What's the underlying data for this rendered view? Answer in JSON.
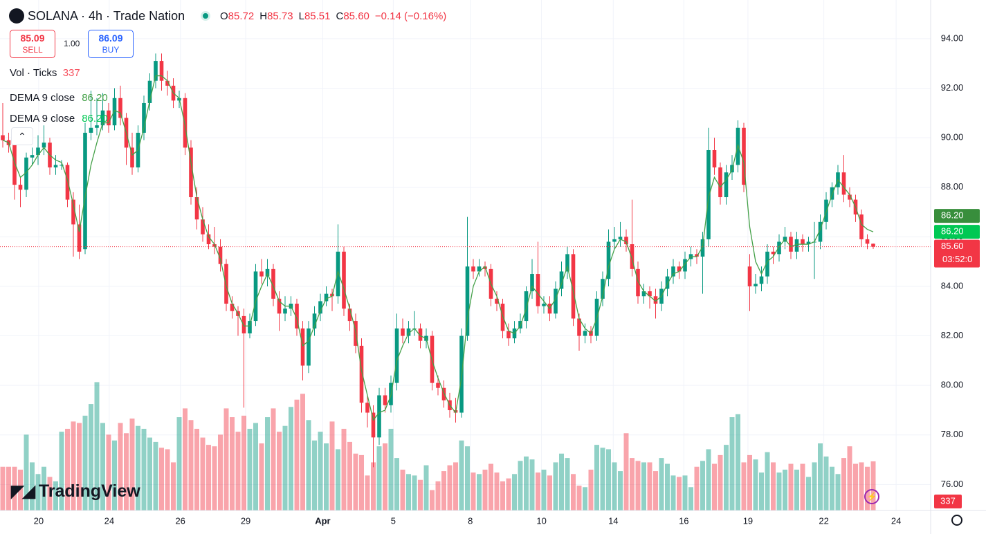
{
  "header": {
    "symbol": "SOLANA · 4h · Trade Nation",
    "ohlc": [
      {
        "key": "O",
        "value": "85.72"
      },
      {
        "key": "H",
        "value": "85.73"
      },
      {
        "key": "L",
        "value": "85.51"
      },
      {
        "key": "C",
        "value": "85.60"
      }
    ],
    "change": "−0.14 (−0.16%)",
    "sell": {
      "price": "85.09",
      "label": "SELL"
    },
    "quantity": "1.00",
    "buy": {
      "price": "86.09",
      "label": "BUY"
    },
    "volume_legend": {
      "name": "Vol · Ticks",
      "value": "337"
    },
    "indicators": [
      {
        "name": "DEMA 9 close",
        "value": "86.20",
        "color": "#43a047"
      },
      {
        "name": "DEMA 9 close",
        "value": "86.20",
        "color": "#00c853"
      }
    ],
    "logo": "TradingView"
  },
  "chart_data": {
    "type": "candlestick",
    "up_color": "#089981",
    "down_color": "#f23645",
    "ylim": [
      74.95,
      95.56
    ],
    "yticks": [
      {
        "value": 76,
        "label": "76.00"
      },
      {
        "value": 78,
        "label": "78.00"
      },
      {
        "value": 80,
        "label": "80.00"
      },
      {
        "value": 82,
        "label": "82.00"
      },
      {
        "value": 84,
        "label": "84.00"
      },
      {
        "value": 86,
        "label": "86.00"
      },
      {
        "value": 88,
        "label": "88.00"
      },
      {
        "value": 90,
        "label": "90.00"
      },
      {
        "value": 92,
        "label": "92.00"
      },
      {
        "value": 94,
        "label": "94.00"
      }
    ],
    "xticks": [
      {
        "value": 6.1,
        "label": "20"
      },
      {
        "value": 18.1,
        "label": "24"
      },
      {
        "value": 30.2,
        "label": "26"
      },
      {
        "value": 41.3,
        "label": "29"
      },
      {
        "value": 54.4,
        "label": "Apr"
      },
      {
        "value": 66.4,
        "label": "5"
      },
      {
        "value": 79.5,
        "label": "8"
      },
      {
        "value": 91.6,
        "label": "10"
      },
      {
        "value": 103.8,
        "label": "14"
      },
      {
        "value": 115.8,
        "label": "16"
      },
      {
        "value": 126.7,
        "label": "19"
      },
      {
        "value": 139.6,
        "label": "22"
      },
      {
        "value": 151.9,
        "label": "24"
      }
    ],
    "grid": true,
    "candles": [
      [
        90.1,
        91.4,
        89.6,
        89.9
      ],
      [
        89.9,
        90.2,
        89.4,
        89.7
      ],
      [
        89.7,
        89.9,
        87.5,
        88.1
      ],
      [
        88.1,
        88.4,
        87.2,
        87.9
      ],
      [
        87.9,
        89.4,
        87.6,
        89.2
      ],
      [
        89.2,
        89.6,
        88.9,
        89.3
      ],
      [
        89.3,
        90.1,
        88.9,
        89.6
      ],
      [
        89.6,
        90.5,
        89.3,
        89.8
      ],
      [
        89.8,
        90.0,
        88.5,
        88.8
      ],
      [
        88.8,
        89.3,
        88.5,
        88.9
      ],
      [
        88.9,
        89.1,
        88.7,
        88.9
      ],
      [
        88.9,
        89.0,
        87.2,
        87.5
      ],
      [
        87.5,
        87.8,
        85.2,
        86.5
      ],
      [
        86.5,
        87.3,
        85.1,
        85.4
      ],
      [
        85.5,
        90.6,
        85.3,
        90.2
      ],
      [
        90.2,
        91.9,
        89.9,
        90.4
      ],
      [
        90.4,
        91.6,
        90.1,
        90.5
      ],
      [
        90.5,
        91.8,
        90.3,
        91.1
      ],
      [
        91.1,
        91.4,
        90.2,
        90.5
      ],
      [
        90.5,
        92.0,
        90.3,
        91.6
      ],
      [
        91.6,
        92.1,
        90.5,
        90.8
      ],
      [
        90.8,
        91.0,
        88.9,
        89.6
      ],
      [
        89.6,
        90.2,
        88.5,
        88.8
      ],
      [
        88.8,
        90.5,
        88.6,
        90.2
      ],
      [
        90.2,
        91.7,
        89.9,
        91.4
      ],
      [
        91.4,
        92.6,
        91.1,
        92.3
      ],
      [
        92.3,
        93.4,
        92.0,
        93.1
      ],
      [
        93.1,
        93.4,
        91.9,
        92.3
      ],
      [
        92.3,
        92.7,
        91.7,
        92.1
      ],
      [
        92.1,
        92.4,
        91.2,
        91.5
      ],
      [
        91.5,
        91.9,
        91.2,
        91.6
      ],
      [
        91.6,
        91.8,
        89.3,
        89.6
      ],
      [
        89.6,
        89.9,
        87.3,
        87.6
      ],
      [
        87.6,
        88.0,
        86.3,
        86.7
      ],
      [
        86.7,
        87.2,
        85.8,
        86.1
      ],
      [
        86.1,
        86.5,
        85.5,
        85.7
      ],
      [
        85.7,
        86.4,
        85.3,
        85.6
      ],
      [
        85.6,
        85.9,
        84.6,
        84.9
      ],
      [
        84.9,
        85.1,
        83.0,
        83.3
      ],
      [
        83.3,
        83.6,
        82.7,
        83.0
      ],
      [
        83.0,
        83.2,
        82.0,
        82.8
      ],
      [
        82.8,
        83.1,
        79.1,
        82.1
      ],
      [
        82.1,
        82.9,
        81.9,
        82.6
      ],
      [
        82.6,
        84.9,
        82.4,
        84.6
      ],
      [
        84.6,
        85.1,
        84.1,
        84.4
      ],
      [
        84.4,
        85.1,
        84.0,
        84.7
      ],
      [
        84.7,
        84.9,
        83.2,
        83.5
      ],
      [
        83.5,
        83.8,
        82.2,
        82.9
      ],
      [
        82.9,
        83.6,
        82.6,
        83.1
      ],
      [
        83.1,
        83.6,
        82.8,
        83.3
      ],
      [
        83.3,
        83.5,
        82.0,
        82.3
      ],
      [
        82.3,
        82.6,
        80.2,
        80.8
      ],
      [
        80.8,
        82.6,
        80.5,
        82.3
      ],
      [
        82.3,
        83.2,
        82.0,
        82.9
      ],
      [
        82.9,
        83.7,
        82.6,
        83.4
      ],
      [
        83.4,
        84.0,
        83.2,
        83.7
      ],
      [
        83.7,
        83.9,
        83.0,
        83.6
      ],
      [
        83.6,
        86.5,
        83.3,
        85.4
      ],
      [
        85.4,
        85.6,
        82.8,
        83.1
      ],
      [
        83.1,
        83.3,
        82.2,
        82.6
      ],
      [
        82.6,
        82.9,
        81.3,
        81.6
      ],
      [
        81.6,
        81.9,
        78.9,
        79.3
      ],
      [
        79.3,
        79.6,
        78.3,
        78.9
      ],
      [
        78.9,
        79.2,
        76.7,
        77.9
      ],
      [
        77.9,
        79.9,
        77.6,
        79.6
      ],
      [
        79.6,
        79.9,
        78.9,
        79.2
      ],
      [
        79.2,
        80.4,
        78.9,
        80.1
      ],
      [
        80.1,
        82.9,
        79.8,
        82.3
      ],
      [
        82.3,
        82.7,
        81.7,
        82.0
      ],
      [
        82.0,
        82.6,
        81.7,
        82.3
      ],
      [
        82.3,
        83.0,
        82.0,
        82.3
      ],
      [
        82.3,
        82.5,
        81.5,
        81.8
      ],
      [
        81.8,
        82.3,
        81.5,
        82.0
      ],
      [
        82.0,
        82.2,
        79.8,
        80.1
      ],
      [
        80.1,
        80.4,
        79.6,
        79.9
      ],
      [
        79.9,
        80.2,
        79.1,
        79.4
      ],
      [
        79.4,
        79.7,
        78.7,
        79.0
      ],
      [
        79.0,
        79.5,
        78.5,
        78.9
      ],
      [
        78.9,
        82.3,
        78.7,
        82.0
      ],
      [
        82.0,
        86.8,
        81.8,
        84.8
      ],
      [
        84.8,
        85.1,
        84.3,
        84.6
      ],
      [
        84.6,
        85.1,
        84.4,
        84.8
      ],
      [
        84.8,
        85.0,
        84.4,
        84.7
      ],
      [
        84.7,
        84.9,
        83.2,
        83.5
      ],
      [
        83.5,
        83.8,
        83.0,
        83.3
      ],
      [
        83.3,
        83.5,
        81.9,
        82.2
      ],
      [
        82.2,
        82.5,
        81.6,
        81.9
      ],
      [
        81.9,
        82.6,
        81.7,
        82.3
      ],
      [
        82.3,
        82.9,
        82.1,
        82.6
      ],
      [
        82.6,
        84.0,
        82.3,
        83.8
      ],
      [
        83.8,
        85.1,
        83.5,
        84.5
      ],
      [
        84.5,
        85.8,
        82.9,
        83.2
      ],
      [
        83.2,
        83.6,
        82.9,
        83.3
      ],
      [
        83.3,
        83.6,
        82.6,
        82.9
      ],
      [
        82.9,
        84.2,
        82.7,
        83.9
      ],
      [
        83.9,
        85.0,
        83.6,
        84.6
      ],
      [
        84.6,
        85.6,
        84.3,
        85.3
      ],
      [
        85.3,
        85.5,
        82.4,
        82.7
      ],
      [
        82.7,
        82.9,
        81.4,
        82.0
      ],
      [
        82.0,
        82.5,
        81.7,
        82.2
      ],
      [
        82.2,
        82.4,
        81.7,
        82.0
      ],
      [
        82.0,
        83.8,
        81.8,
        83.5
      ],
      [
        83.5,
        84.6,
        83.2,
        84.3
      ],
      [
        84.3,
        86.3,
        84.0,
        85.8
      ],
      [
        85.8,
        86.4,
        85.5,
        85.9
      ],
      [
        85.9,
        86.6,
        85.6,
        86.0
      ],
      [
        86.0,
        86.3,
        85.4,
        85.7
      ],
      [
        85.7,
        87.5,
        84.4,
        84.7
      ],
      [
        84.7,
        85.0,
        83.3,
        83.6
      ],
      [
        83.6,
        84.1,
        83.3,
        83.8
      ],
      [
        83.8,
        84.0,
        83.1,
        83.6
      ],
      [
        83.6,
        83.9,
        82.7,
        83.3
      ],
      [
        83.3,
        84.2,
        83.0,
        83.9
      ],
      [
        83.9,
        84.7,
        83.6,
        84.4
      ],
      [
        84.4,
        85.1,
        84.1,
        84.8
      ],
      [
        84.8,
        85.0,
        84.3,
        84.6
      ],
      [
        84.6,
        85.4,
        84.3,
        85.1
      ],
      [
        85.1,
        85.6,
        84.8,
        85.3
      ],
      [
        85.3,
        85.5,
        84.9,
        85.2
      ],
      [
        85.2,
        86.2,
        83.7,
        85.9
      ],
      [
        85.9,
        90.4,
        85.6,
        89.5
      ],
      [
        89.5,
        90.0,
        88.5,
        88.8
      ],
      [
        88.8,
        89.0,
        87.3,
        87.6
      ],
      [
        87.6,
        88.9,
        87.3,
        88.6
      ],
      [
        88.6,
        89.3,
        88.3,
        88.9
      ],
      [
        88.9,
        90.7,
        88.6,
        90.4
      ],
      [
        90.4,
        90.6,
        87.8,
        88.1
      ],
      [
        84.8,
        85.3,
        83.0,
        84.0
      ],
      [
        84.0,
        84.5,
        83.7,
        84.1
      ],
      [
        84.1,
        84.8,
        83.8,
        84.4
      ],
      [
        84.4,
        85.7,
        84.1,
        85.4
      ],
      [
        85.4,
        85.6,
        84.9,
        85.3
      ],
      [
        85.3,
        86.1,
        85.0,
        85.8
      ],
      [
        85.8,
        86.4,
        85.5,
        86.0
      ],
      [
        86.0,
        86.2,
        85.1,
        85.4
      ],
      [
        85.4,
        86.2,
        85.1,
        85.9
      ],
      [
        85.9,
        86.1,
        85.4,
        85.7
      ],
      [
        85.7,
        86.0,
        85.4,
        85.8
      ],
      [
        85.8,
        86.6,
        84.3,
        85.8
      ],
      [
        85.8,
        86.9,
        85.5,
        86.6
      ],
      [
        86.6,
        87.8,
        86.3,
        87.5
      ],
      [
        87.5,
        88.2,
        87.2,
        88.0
      ],
      [
        88.0,
        88.9,
        87.7,
        88.6
      ],
      [
        88.6,
        89.3,
        87.4,
        87.7
      ],
      [
        87.7,
        88.0,
        87.2,
        87.5
      ],
      [
        87.5,
        87.7,
        86.6,
        86.9
      ],
      [
        86.9,
        87.1,
        85.6,
        85.9
      ],
      [
        85.9,
        86.1,
        85.5,
        85.72
      ],
      [
        85.72,
        85.73,
        85.51,
        85.6
      ]
    ],
    "volumes": [
      300,
      300,
      300,
      280,
      520,
      330,
      250,
      300,
      230,
      200,
      540,
      560,
      610,
      600,
      650,
      730,
      880,
      600,
      520,
      480,
      600,
      530,
      630,
      580,
      560,
      500,
      470,
      430,
      420,
      330,
      640,
      700,
      620,
      560,
      500,
      450,
      440,
      520,
      700,
      640,
      540,
      650,
      560,
      600,
      460,
      640,
      700,
      540,
      580,
      710,
      760,
      800,
      620,
      480,
      540,
      460,
      610,
      420,
      560,
      470,
      390,
      380,
      240,
      330,
      440,
      460,
      560,
      360,
      280,
      250,
      240,
      210,
      310,
      140,
      200,
      270,
      310,
      330,
      480,
      440,
      260,
      250,
      280,
      320,
      260,
      200,
      220,
      250,
      340,
      370,
      350,
      260,
      280,
      240,
      330,
      390,
      360,
      250,
      170,
      160,
      280,
      450,
      430,
      420,
      330,
      270,
      530,
      360,
      340,
      330,
      330,
      270,
      360,
      320,
      240,
      230,
      240,
      160,
      300,
      340,
      420,
      320,
      380,
      450,
      640,
      660,
      330,
      380,
      350,
      260,
      400,
      330,
      260,
      280,
      320,
      280,
      320,
      230,
      330,
      460,
      370,
      300,
      250,
      360,
      440,
      320,
      330,
      300,
      337
    ],
    "vlim": [
      0,
      3500
    ],
    "series": [
      {
        "name": "DEMA 9 close",
        "color": "#43a047",
        "values": [
          89.9,
          89.8,
          89.0,
          88.4,
          88.6,
          88.9,
          89.3,
          89.6,
          89.3,
          89.1,
          89.0,
          88.3,
          87.3,
          86.2,
          87.6,
          88.9,
          89.8,
          90.6,
          90.6,
          91.1,
          91.0,
          90.2,
          89.3,
          89.5,
          90.4,
          91.5,
          92.5,
          92.5,
          92.3,
          91.8,
          91.6,
          90.5,
          89.0,
          87.6,
          86.7,
          86.0,
          85.7,
          85.1,
          84.0,
          83.3,
          82.9,
          82.4,
          82.4,
          83.4,
          84.0,
          84.5,
          84.0,
          83.4,
          83.2,
          83.2,
          82.7,
          81.6,
          81.8,
          82.4,
          83.0,
          83.5,
          83.6,
          84.6,
          83.9,
          83.1,
          82.2,
          80.6,
          79.6,
          78.6,
          78.9,
          79.0,
          79.6,
          81.0,
          81.6,
          82.1,
          82.3,
          82.0,
          81.9,
          81.0,
          80.3,
          79.7,
          79.2,
          78.9,
          80.3,
          82.7,
          84.0,
          84.6,
          84.8,
          84.1,
          83.6,
          82.8,
          82.2,
          82.1,
          82.4,
          83.1,
          84.0,
          83.7,
          83.4,
          83.1,
          83.5,
          84.1,
          84.8,
          83.8,
          82.7,
          82.3,
          82.1,
          82.7,
          83.6,
          84.8,
          85.5,
          85.9,
          85.8,
          85.1,
          84.2,
          83.8,
          83.6,
          83.4,
          83.6,
          84.1,
          84.5,
          84.6,
          84.9,
          85.2,
          85.2,
          85.6,
          87.6,
          88.4,
          88.0,
          88.3,
          88.7,
          89.7,
          89.0,
          86.4,
          85.0,
          84.5,
          85.0,
          85.2,
          85.6,
          85.9,
          85.6,
          85.7,
          85.7,
          85.7,
          85.8,
          86.3,
          87.0,
          87.7,
          88.3,
          88.0,
          87.7,
          87.2,
          86.5,
          86.3,
          86.2
        ]
      }
    ],
    "price_markers": [
      {
        "value": 86.2,
        "label": "86.20",
        "color": "#388e3c"
      },
      {
        "value": 86.2,
        "label": "86.20",
        "color": "#00c853"
      }
    ],
    "last_price": {
      "value": 85.6,
      "label": "85.60",
      "color": "#f23645",
      "countdown": "03:52:0"
    },
    "volume_marker": {
      "value": 337,
      "label": "337",
      "color": "#f23645"
    }
  }
}
